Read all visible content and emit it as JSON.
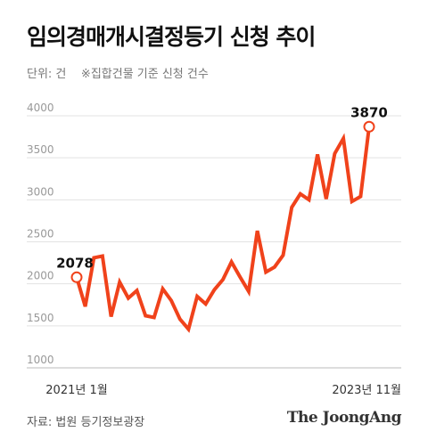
{
  "header": {
    "title": "임의경매개시결정등기 신청 추이",
    "subtitle": "단위: 건    ※집합건물 기준 신청 건수"
  },
  "footer": {
    "source": "자료: 법원 등기정보광장",
    "brand": "The JoongAng"
  },
  "chart_data": {
    "type": "line",
    "title": "임의경매개시결정등기 신청 추이",
    "xlabel": "",
    "ylabel": "",
    "x": [
      "2021-01",
      "2021-02",
      "2021-03",
      "2021-04",
      "2021-05",
      "2021-06",
      "2021-07",
      "2021-08",
      "2021-09",
      "2021-10",
      "2021-11",
      "2021-12",
      "2022-01",
      "2022-02",
      "2022-03",
      "2022-04",
      "2022-05",
      "2022-06",
      "2022-07",
      "2022-08",
      "2022-09",
      "2022-10",
      "2022-11",
      "2022-12",
      "2023-01",
      "2023-02",
      "2023-03",
      "2023-04",
      "2023-05",
      "2023-06",
      "2023-07",
      "2023-08",
      "2023-09",
      "2023-10",
      "2023-11"
    ],
    "x_tick_labels": [
      {
        "index": 0,
        "label": "2021년 1월"
      },
      {
        "index": 34,
        "label": "2023년 11월"
      }
    ],
    "series": [
      {
        "values": [
          2078,
          1730,
          2310,
          2330,
          1610,
          2020,
          1830,
          1920,
          1620,
          1600,
          1940,
          1800,
          1580,
          1460,
          1850,
          1760,
          1930,
          2050,
          2260,
          2080,
          1910,
          2630,
          2140,
          2200,
          2340,
          2910,
          3070,
          3000,
          3540,
          3010,
          3550,
          3730,
          2980,
          3040,
          3870
        ]
      }
    ],
    "annotations": [
      {
        "index": 0,
        "label": "2078"
      },
      {
        "index": 34,
        "label": "3870"
      }
    ],
    "ylim": [
      1000,
      4000
    ],
    "yticks": [
      1000,
      1500,
      2000,
      2500,
      3000,
      3500,
      4000
    ],
    "grid": true,
    "line_color": "#f0421b",
    "grid_color": "#e3e3e3"
  }
}
